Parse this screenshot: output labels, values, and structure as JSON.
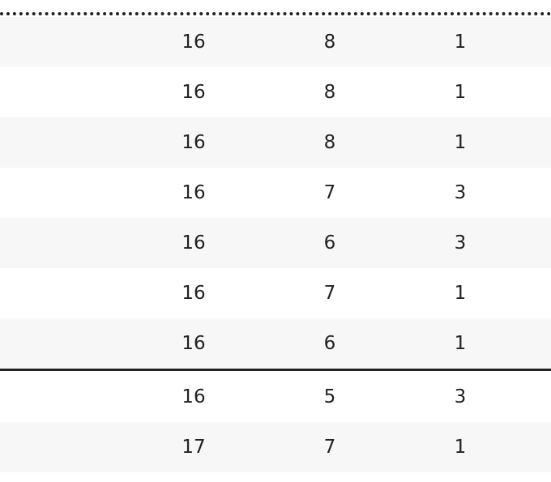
{
  "table": {
    "rows": [
      [
        16,
        8,
        1
      ],
      [
        16,
        8,
        1
      ],
      [
        16,
        8,
        1
      ],
      [
        16,
        7,
        3
      ],
      [
        16,
        6,
        3
      ],
      [
        16,
        7,
        1
      ],
      [
        16,
        6,
        1
      ],
      [
        16,
        5,
        3
      ],
      [
        17,
        7,
        1
      ]
    ]
  }
}
